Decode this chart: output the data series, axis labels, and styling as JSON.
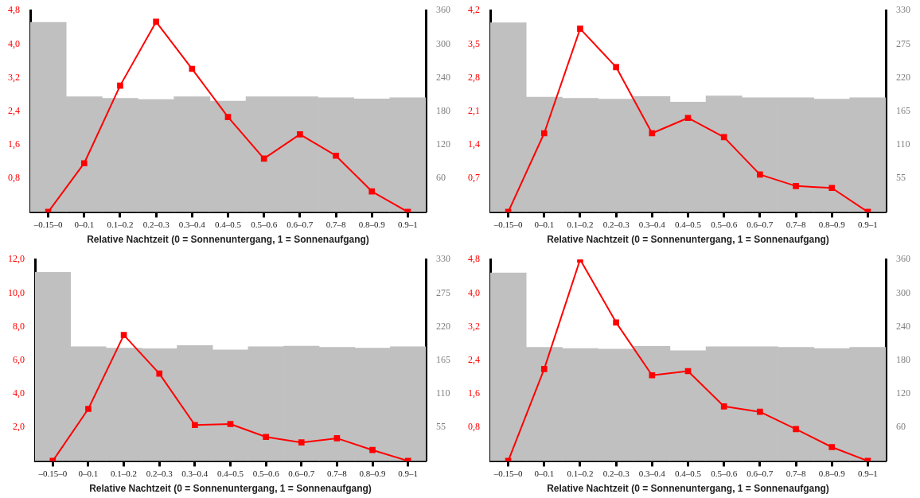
{
  "chart_data": [
    {
      "type": "bar",
      "xlabel": "Relative Nachtzeit (0 = Sonnenuntergang, 1 = Sonnenaufgang)",
      "categories": [
        "–0.15–0",
        "0–0.1",
        "0.1–0.2",
        "0.2–0.3",
        "0.3–0.4",
        "0.4–0.5",
        "0.5–0.6",
        "0.6–0.7",
        "0.7–8",
        "0.8–0.9",
        "0.9–1"
      ],
      "series": [
        {
          "axis": "y2",
          "color": "#c0c0c0",
          "values": [
            339,
            206,
            203,
            201,
            206,
            198,
            206,
            206,
            204,
            202,
            204
          ]
        },
        {
          "type": "line",
          "color": "#ff0000",
          "values": [
            0,
            1.16,
            3.01,
            4.53,
            3.41,
            2.26,
            1.27,
            1.85,
            1.34,
            0.49,
            0
          ]
        }
      ],
      "ylim": [
        0,
        4.8
      ],
      "yticks": [
        {
          "value": 0.8,
          "label": "0,8"
        },
        {
          "value": 1.6,
          "label": "1,6"
        },
        {
          "value": 2.4,
          "label": "2,4"
        },
        {
          "value": 3.2,
          "label": "3,2"
        },
        {
          "value": 4.0,
          "label": "4,0"
        },
        {
          "value": 4.8,
          "label": "4,8"
        }
      ],
      "y2lim": [
        0,
        360
      ],
      "y2ticks": [
        60,
        120,
        180,
        240,
        300,
        360
      ],
      "marker": "square",
      "grid": false,
      "legend": false
    },
    {
      "type": "bar",
      "xlabel": "Relative Nachtzeit (0 = Sonnenuntergang, 1 = Sonnenaufgang)",
      "categories": [
        "–0.15–0",
        "0–0.1",
        "0.1–0.2",
        "0.2–0.3",
        "0.3–0.4",
        "0.4–0.5",
        "0.5–0.6",
        "0.6–0.7",
        "0.7–8",
        "0.8–0.9",
        "0.9–1"
      ],
      "series": [
        {
          "axis": "y2",
          "color": "#c0c0c0",
          "values": [
            310,
            188,
            186,
            185,
            189,
            180,
            190,
            187,
            187,
            185,
            187
          ]
        },
        {
          "type": "line",
          "color": "#ff0000",
          "values": [
            0,
            1.64,
            3.82,
            3.02,
            1.64,
            1.96,
            1.56,
            0.78,
            0.54,
            0.5,
            0
          ]
        }
      ],
      "ylim": [
        0,
        4.2
      ],
      "yticks": [
        {
          "value": 0.7,
          "label": "0,7"
        },
        {
          "value": 1.4,
          "label": "1,4"
        },
        {
          "value": 2.1,
          "label": "2,1"
        },
        {
          "value": 2.8,
          "label": "2,8"
        },
        {
          "value": 3.5,
          "label": "3,5"
        },
        {
          "value": 4.2,
          "label": "4,2"
        }
      ],
      "y2lim": [
        0,
        330
      ],
      "y2ticks": [
        55,
        110,
        165,
        220,
        275,
        330
      ],
      "marker": "square",
      "grid": false,
      "legend": false
    },
    {
      "type": "bar",
      "xlabel": "Relative Nachtzeit (0 = Sonnenuntergang, 1 = Sonnenaufgang)",
      "categories": [
        "–0.15–0",
        "0–0.1",
        "0.1–0.2",
        "0.2–0.3",
        "0.3–0.4",
        "0.4–0.5",
        "0.5–0.6",
        "0.6–0.7",
        "0.7–8",
        "0.8–0.9",
        "0.9–1"
      ],
      "series": [
        {
          "axis": "y2",
          "color": "#c0c0c0",
          "values": [
            309,
            187,
            185,
            184,
            189,
            182,
            187,
            188,
            186,
            185,
            187
          ]
        },
        {
          "type": "line",
          "color": "#ff0000",
          "values": [
            0,
            3.1,
            7.5,
            5.2,
            2.14,
            2.2,
            1.43,
            1.1,
            1.35,
            0.65,
            0
          ]
        }
      ],
      "ylim": [
        0,
        12
      ],
      "yticks": [
        {
          "value": 2,
          "label": "2,0"
        },
        {
          "value": 4,
          "label": "4,0"
        },
        {
          "value": 6,
          "label": "6,0"
        },
        {
          "value": 8,
          "label": "8,0"
        },
        {
          "value": 10,
          "label": "10,0"
        },
        {
          "value": 12,
          "label": "12,0"
        }
      ],
      "y2lim": [
        0,
        330
      ],
      "y2ticks": [
        55,
        110,
        165,
        220,
        275,
        330
      ],
      "marker": "square",
      "grid": false,
      "legend": false
    },
    {
      "type": "bar",
      "xlabel": "Relative Nachtzeit (0 = Sonnenuntergang, 1 = Sonnenaufgang)",
      "categories": [
        "–0.15–0",
        "0–0.1",
        "0.1–0.2",
        "0.2–0.3",
        "0.3–0.4",
        "0.4–0.5",
        "0.5–0.6",
        "0.6–0.7",
        "0.7–8",
        "0.8–0.9",
        "0.9–1"
      ],
      "series": [
        {
          "axis": "y2",
          "color": "#c0c0c0",
          "values": [
            336,
            203,
            201,
            200,
            205,
            197,
            204,
            204,
            203,
            201,
            203
          ]
        },
        {
          "type": "line",
          "color": "#ff0000",
          "values": [
            0,
            2.19,
            4.8,
            3.3,
            2.04,
            2.14,
            1.3,
            1.17,
            0.76,
            0.33,
            0
          ]
        }
      ],
      "ylim": [
        0,
        4.8
      ],
      "yticks": [
        {
          "value": 0.8,
          "label": "0,8"
        },
        {
          "value": 1.6,
          "label": "1,6"
        },
        {
          "value": 2.4,
          "label": "2,4"
        },
        {
          "value": 3.2,
          "label": "3,2"
        },
        {
          "value": 4.0,
          "label": "4,0"
        },
        {
          "value": 4.8,
          "label": "4,8"
        }
      ],
      "y2lim": [
        0,
        360
      ],
      "y2ticks": [
        60,
        120,
        180,
        240,
        300,
        360
      ],
      "marker": "square",
      "grid": false,
      "legend": false
    }
  ]
}
